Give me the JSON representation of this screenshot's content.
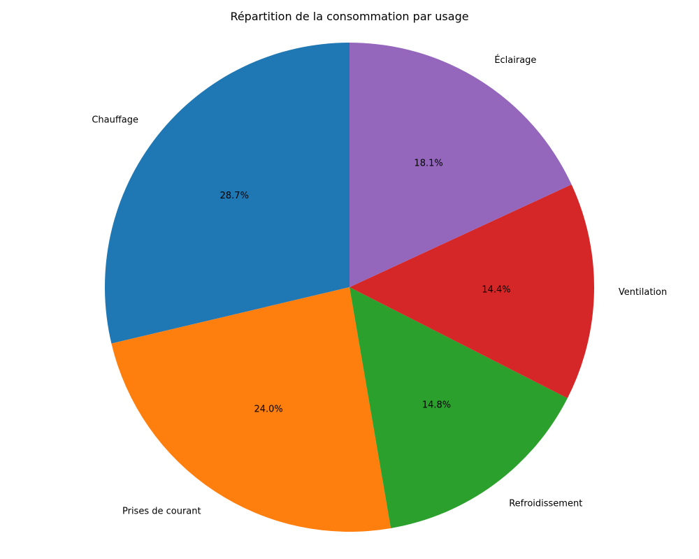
{
  "chart_data": {
    "type": "pie",
    "title": "Répartition de la consommation par usage",
    "start_angle_deg": 90,
    "direction": "counterclockwise",
    "slices": [
      {
        "label": "Chauffage",
        "value": 28.7,
        "pct_label": "28.7%",
        "color": "#1f77b4"
      },
      {
        "label": "Prises de courant",
        "value": 24.0,
        "pct_label": "24.0%",
        "color": "#ff7f0e"
      },
      {
        "label": "Refroidissement",
        "value": 14.8,
        "pct_label": "14.8%",
        "color": "#2ca02c"
      },
      {
        "label": "Ventilation",
        "value": 14.4,
        "pct_label": "14.4%",
        "color": "#d62728"
      },
      {
        "label": "Éclairage",
        "value": 18.1,
        "pct_label": "18.1%",
        "color": "#9467bd"
      }
    ]
  }
}
